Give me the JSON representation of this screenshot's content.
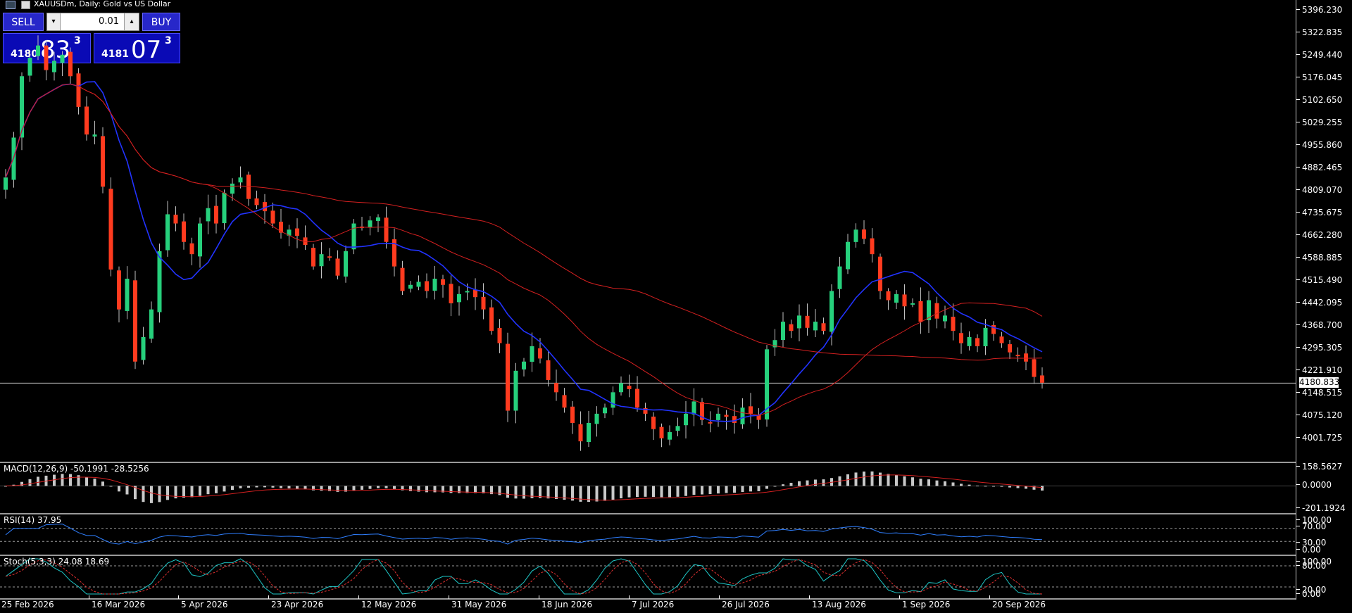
{
  "header": {
    "symbol_title": "XAUUSDm, Daily:  Gold vs US Dollar"
  },
  "trade_panel": {
    "sell_label": "SELL",
    "buy_label": "BUY",
    "lot_value": "0.01",
    "bid": {
      "prefix": "4180",
      "big": "83",
      "sup": "3"
    },
    "ask": {
      "prefix": "4181",
      "big": "07",
      "sup": "3"
    }
  },
  "price_axis": {
    "ticks": [
      "5396.230",
      "5322.835",
      "5249.440",
      "5176.045",
      "5102.650",
      "5029.255",
      "4955.860",
      "4882.465",
      "4809.070",
      "4735.675",
      "4662.280",
      "4588.885",
      "4515.490",
      "4442.095",
      "4368.700",
      "4295.305",
      "4221.910",
      "4148.515",
      "4075.120",
      "4001.725"
    ],
    "current_price": "4180.833"
  },
  "macd": {
    "label": "MACD(12,26,9) -50.1991 -28.5256",
    "ticks": [
      "158.5627",
      "0.0000",
      "-201.1924"
    ]
  },
  "rsi": {
    "label": "RSI(14) 37.95",
    "ticks": [
      "100.00",
      "70.00",
      "30.00",
      "0.00"
    ]
  },
  "stoch": {
    "label": "Stoch(5,3,3) 24.08 18.69",
    "ticks": [
      "100.00",
      "80.00",
      "20.00",
      "0.00"
    ]
  },
  "time_axis": {
    "labels": [
      "25 Feb 2026",
      "16 Mar 2026",
      "5 Apr 2026",
      "23 Apr 2026",
      "12 May 2026",
      "31 May 2026",
      "18 Jun 2026",
      "7 Jul 2026",
      "26 Jul 2026",
      "13 Aug 2026",
      "1 Sep 2026",
      "20 Sep 2026"
    ]
  },
  "colors": {
    "bull": "#26d07c",
    "bear": "#ff3b1f",
    "ma_fast": "#2233ff",
    "ma_slow": "#d42020",
    "panel_blue": "#2727c9"
  },
  "icons": [
    "chart-window-icon",
    "save-icon",
    "lot-dropdown-icon",
    "lot-up-icon"
  ],
  "chart_data": {
    "type": "candlestick",
    "closes": [
      4850,
      4980,
      5180,
      5240,
      5280,
      5200,
      5230,
      5250,
      5180,
      5080,
      4990,
      4990,
      4820,
      4550,
      4420,
      4520,
      4250,
      4330,
      4420,
      4610,
      4730,
      4700,
      4640,
      4600,
      4700,
      4750,
      4700,
      4800,
      4830,
      4850,
      4780,
      4760,
      4740,
      4700,
      4670,
      4680,
      4660,
      4630,
      4560,
      4600,
      4590,
      4530,
      4610,
      4700,
      4690,
      4710,
      4720,
      4640,
      4560,
      4480,
      4500,
      4510,
      4480,
      4520,
      4500,
      4440,
      4470,
      4480,
      4460,
      4420,
      4350,
      4310,
      4090,
      4220,
      4250,
      4300,
      4260,
      4190,
      4150,
      4100,
      4050,
      3990,
      4050,
      4080,
      4100,
      4150,
      4180,
      4160,
      4100,
      4080,
      4030,
      4000,
      4020,
      4040,
      4080,
      4120,
      4060,
      4050,
      4080,
      4070,
      4050,
      4100,
      4080,
      4060,
      4290,
      4320,
      4380,
      4350,
      4400,
      4360,
      4380,
      4350,
      4480,
      4560,
      4640,
      4680,
      4650,
      4600,
      4480,
      4450,
      4470,
      4430,
      4440,
      4380,
      4450,
      4390,
      4400,
      4350,
      4310,
      4330,
      4300,
      4360,
      4340,
      4310,
      4280,
      4270,
      4250,
      4200,
      4181
    ]
  }
}
